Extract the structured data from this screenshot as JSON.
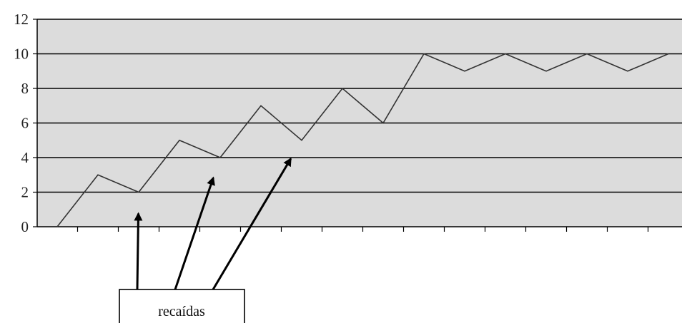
{
  "chart_data": {
    "type": "line",
    "title": "",
    "xlabel": "",
    "ylabel": "",
    "ylim": [
      0,
      12
    ],
    "yticks": [
      "0",
      "2",
      "4",
      "6",
      "8",
      "10",
      "12"
    ],
    "grid": true,
    "plot_background": "#dcdcdc",
    "line_color": "#333333",
    "series": [
      {
        "values": [
          0,
          3,
          2,
          5,
          4,
          7,
          5,
          8,
          6,
          10,
          9,
          10,
          9,
          10,
          9,
          10
        ]
      }
    ],
    "annotation": {
      "label": "recaídas",
      "target_points": [
        2,
        4,
        6
      ]
    }
  }
}
